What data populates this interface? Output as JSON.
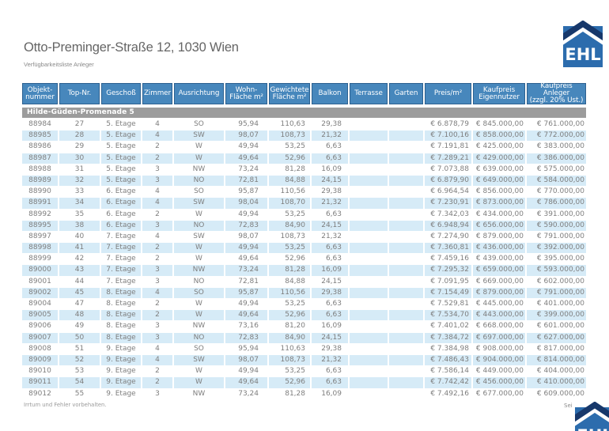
{
  "page": {
    "title": "Otto-Preminger-Straße 12, 1030 Wien",
    "subtitle": "Verfügbarkeitsliste Anleger",
    "footer_disclaimer": "Irrtum und Fehler vorbehalten.",
    "footer_page_partial": "Sei"
  },
  "logo": {
    "text": "EHL",
    "square_color": "#2c6cad",
    "roof_color": "#17386b"
  },
  "colors": {
    "table_header_blue": "#4787bc",
    "table_header_border": "#2d6190",
    "section_gray": "#9c9c9c",
    "row_stripe_blue": "#d6ebf7",
    "row_text_gray": "#7e7e7e"
  },
  "table": {
    "section_header": "Hilde-Güden-Promenade 5",
    "columns": [
      {
        "label": "Objekt-nummer",
        "lines": [
          "Objekt-",
          "nummer"
        ]
      },
      {
        "label": "Top-Nr.",
        "lines": [
          "Top-Nr."
        ]
      },
      {
        "label": "Geschoß",
        "lines": [
          "Geschoß"
        ]
      },
      {
        "label": "Zimmer",
        "lines": [
          "Zimmer"
        ]
      },
      {
        "label": "Ausrichtung",
        "lines": [
          "Ausrichtung"
        ]
      },
      {
        "label": "Wohn-Fläche m²",
        "lines": [
          "Wohn-",
          "Fläche m²"
        ]
      },
      {
        "label": "Gewichtete Fläche m²",
        "lines": [
          "Gewichtete",
          "Fläche m²"
        ]
      },
      {
        "label": "Balkon",
        "lines": [
          "Balkon"
        ]
      },
      {
        "label": "Terrasse",
        "lines": [
          "Terrasse"
        ]
      },
      {
        "label": "Garten",
        "lines": [
          "Garten"
        ]
      },
      {
        "label": "Preis/m²",
        "lines": [
          "Preis/m²"
        ]
      },
      {
        "label": "Kaufpreis Eigennutzer",
        "lines": [
          "Kaufpreis",
          "Eigennutzer"
        ]
      },
      {
        "label": "Kaufpreis Anleger (zzgl. 20% Ust.)",
        "lines": [
          "Kaufpreis",
          "Anleger",
          "(zzgl. 20% Ust.)"
        ]
      }
    ],
    "rows": [
      [
        "88984",
        "27",
        "5. Etage",
        "4",
        "SO",
        "95,94",
        "110,63",
        "29,38",
        "",
        "",
        "€ 6.878,79",
        "€ 845.000,00",
        "€ 761.000,00"
      ],
      [
        "88985",
        "28",
        "5. Etage",
        "4",
        "SW",
        "98,07",
        "108,73",
        "21,32",
        "",
        "",
        "€ 7.100,16",
        "€ 858.000,00",
        "€ 772.000,00"
      ],
      [
        "88986",
        "29",
        "5. Etage",
        "2",
        "W",
        "49,94",
        "53,25",
        "6,63",
        "",
        "",
        "€ 7.191,81",
        "€ 425.000,00",
        "€ 383.000,00"
      ],
      [
        "88987",
        "30",
        "5. Etage",
        "2",
        "W",
        "49,64",
        "52,96",
        "6,63",
        "",
        "",
        "€ 7.289,21",
        "€ 429.000,00",
        "€ 386.000,00"
      ],
      [
        "88988",
        "31",
        "5. Etage",
        "3",
        "NW",
        "73,24",
        "81,28",
        "16,09",
        "",
        "",
        "€ 7.073,88",
        "€ 639.000,00",
        "€ 575.000,00"
      ],
      [
        "88989",
        "32",
        "5. Etage",
        "3",
        "NO",
        "72,81",
        "84,88",
        "24,15",
        "",
        "",
        "€ 6.879,90",
        "€ 649.000,00",
        "€ 584.000,00"
      ],
      [
        "88990",
        "33",
        "6. Etage",
        "4",
        "SO",
        "95,87",
        "110,56",
        "29,38",
        "",
        "",
        "€ 6.964,54",
        "€ 856.000,00",
        "€ 770.000,00"
      ],
      [
        "88991",
        "34",
        "6. Etage",
        "4",
        "SW",
        "98,04",
        "108,70",
        "21,32",
        "",
        "",
        "€ 7.230,91",
        "€ 873.000,00",
        "€ 786.000,00"
      ],
      [
        "88992",
        "35",
        "6. Etage",
        "2",
        "W",
        "49,94",
        "53,25",
        "6,63",
        "",
        "",
        "€ 7.342,03",
        "€ 434.000,00",
        "€ 391.000,00"
      ],
      [
        "88995",
        "38",
        "6. Etage",
        "3",
        "NO",
        "72,83",
        "84,90",
        "24,15",
        "",
        "",
        "€ 6.948,94",
        "€ 656.000,00",
        "€ 590.000,00"
      ],
      [
        "88997",
        "40",
        "7. Etage",
        "4",
        "SW",
        "98,07",
        "108,73",
        "21,32",
        "",
        "",
        "€ 7.274,90",
        "€ 879.000,00",
        "€ 791.000,00"
      ],
      [
        "88998",
        "41",
        "7. Etage",
        "2",
        "W",
        "49,94",
        "53,25",
        "6,63",
        "",
        "",
        "€ 7.360,81",
        "€ 436.000,00",
        "€ 392.000,00"
      ],
      [
        "88999",
        "42",
        "7. Etage",
        "2",
        "W",
        "49,64",
        "52,96",
        "6,63",
        "",
        "",
        "€ 7.459,16",
        "€ 439.000,00",
        "€ 395.000,00"
      ],
      [
        "89000",
        "43",
        "7. Etage",
        "3",
        "NW",
        "73,24",
        "81,28",
        "16,09",
        "",
        "",
        "€ 7.295,32",
        "€ 659.000,00",
        "€ 593.000,00"
      ],
      [
        "89001",
        "44",
        "7. Etage",
        "3",
        "NO",
        "72,81",
        "84,88",
        "24,15",
        "",
        "",
        "€ 7.091,95",
        "€ 669.000,00",
        "€ 602.000,00"
      ],
      [
        "89002",
        "45",
        "8. Etage",
        "4",
        "SO",
        "95,87",
        "110,56",
        "29,38",
        "",
        "",
        "€ 7.154,49",
        "€ 879.000,00",
        "€ 791.000,00"
      ],
      [
        "89004",
        "47",
        "8. Etage",
        "2",
        "W",
        "49,94",
        "53,25",
        "6,63",
        "",
        "",
        "€ 7.529,81",
        "€ 445.000,00",
        "€ 401.000,00"
      ],
      [
        "89005",
        "48",
        "8. Etage",
        "2",
        "W",
        "49,64",
        "52,96",
        "6,63",
        "",
        "",
        "€ 7.534,70",
        "€ 443.000,00",
        "€ 399.000,00"
      ],
      [
        "89006",
        "49",
        "8. Etage",
        "3",
        "NW",
        "73,16",
        "81,20",
        "16,09",
        "",
        "",
        "€ 7.401,02",
        "€ 668.000,00",
        "€ 601.000,00"
      ],
      [
        "89007",
        "50",
        "8. Etage",
        "3",
        "NO",
        "72,83",
        "84,90",
        "24,15",
        "",
        "",
        "€ 7.384,72",
        "€ 697.000,00",
        "€ 627.000,00"
      ],
      [
        "89008",
        "51",
        "9. Etage",
        "4",
        "SO",
        "95,94",
        "110,63",
        "29,38",
        "",
        "",
        "€ 7.384,98",
        "€ 908.000,00",
        "€ 817.000,00"
      ],
      [
        "89009",
        "52",
        "9. Etage",
        "4",
        "SW",
        "98,07",
        "108,73",
        "21,32",
        "",
        "",
        "€ 7.486,43",
        "€ 904.000,00",
        "€ 814.000,00"
      ],
      [
        "89010",
        "53",
        "9. Etage",
        "2",
        "W",
        "49,94",
        "53,25",
        "6,63",
        "",
        "",
        "€ 7.586,14",
        "€ 449.000,00",
        "€ 404.000,00"
      ],
      [
        "89011",
        "54",
        "9. Etage",
        "2",
        "W",
        "49,64",
        "52,96",
        "6,63",
        "",
        "",
        "€ 7.742,42",
        "€ 456.000,00",
        "€ 410.000,00"
      ],
      [
        "89012",
        "55",
        "9. Etage",
        "3",
        "NW",
        "73,24",
        "81,28",
        "16,09",
        "",
        "",
        "€ 7.492,16",
        "€ 677.000,00",
        "€ 609.000,00"
      ]
    ]
  }
}
